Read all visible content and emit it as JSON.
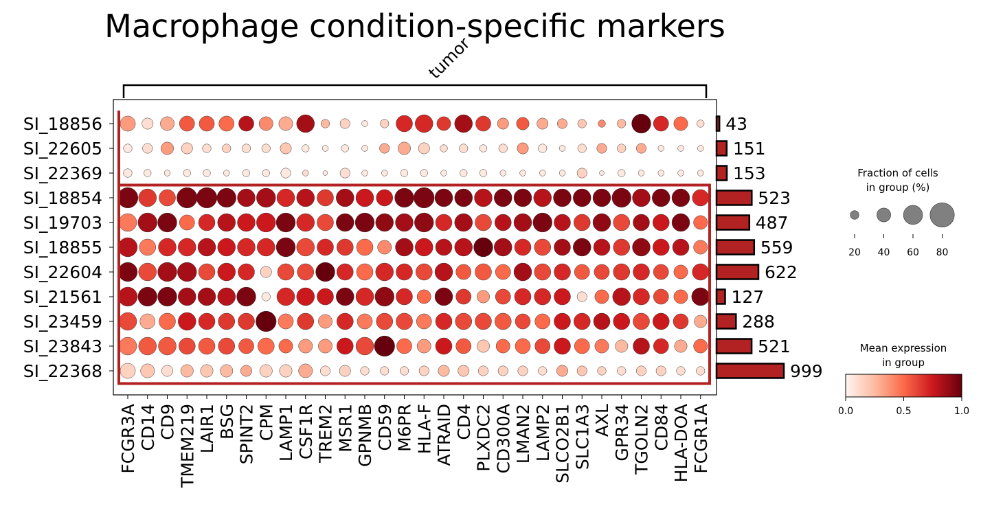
{
  "chart_data": {
    "type": "dotplot",
    "title": "Macrophage condition-specific markers",
    "group_label": "tumor",
    "genes": [
      "FCGR3A",
      "CD14",
      "CD9",
      "TMEM219",
      "LAIR1",
      "BSG",
      "SPINT2",
      "CPM",
      "LAMP1",
      "CSF1R",
      "TREM2",
      "MSR1",
      "GPNMB",
      "CD59",
      "M6PR",
      "HLA-F",
      "ATRAID",
      "CD4",
      "PLXDC2",
      "CD300A",
      "LMAN2",
      "LAMP2",
      "SLCO2B1",
      "SLC1A3",
      "AXL",
      "GPR34",
      "TGOLN2",
      "CD84",
      "HLA-DOA",
      "FCGR1A"
    ],
    "samples": [
      "SI_18856",
      "SI_22605",
      "SI_22369",
      "SI_18854",
      "SI_19703",
      "SI_18855",
      "SI_22604",
      "SI_21561",
      "SI_23459",
      "SI_23843",
      "SI_22368"
    ],
    "cell_counts": [
      43,
      151,
      153,
      523,
      487,
      559,
      622,
      127,
      288,
      521,
      999
    ],
    "mean_expression": [
      [
        0.35,
        0.1,
        0.3,
        0.55,
        0.55,
        0.5,
        0.8,
        0.4,
        0.3,
        0.85,
        0.25,
        0.15,
        0.05,
        0.15,
        0.7,
        0.7,
        0.65,
        0.85,
        0.65,
        0.35,
        0.55,
        0.3,
        0.3,
        0.2,
        0.4,
        0.25,
        1.0,
        0.7,
        0.5,
        0.1
      ],
      [
        0.05,
        0.1,
        0.35,
        0.15,
        0.1,
        0.15,
        0.1,
        0.1,
        0.2,
        0.05,
        0.05,
        0.05,
        0.05,
        0.3,
        0.3,
        0.15,
        0.1,
        0.1,
        0.05,
        0.1,
        0.35,
        0.05,
        0.05,
        0.1,
        0.3,
        0.15,
        0.3,
        0.05,
        0.05,
        0.05
      ],
      [
        0.05,
        0.05,
        0.05,
        0.05,
        0.05,
        0.05,
        0.05,
        0.05,
        0.05,
        0.1,
        0.05,
        0.1,
        0.05,
        0.05,
        0.05,
        0.05,
        0.05,
        0.05,
        0.05,
        0.05,
        0.05,
        0.05,
        0.05,
        0.15,
        0.05,
        0.05,
        0.05,
        0.05,
        0.05,
        0.05
      ],
      [
        0.95,
        0.65,
        0.6,
        0.95,
        0.95,
        0.95,
        0.85,
        0.85,
        0.7,
        0.8,
        0.65,
        0.85,
        0.75,
        0.75,
        0.95,
        0.95,
        0.95,
        0.95,
        0.8,
        0.95,
        0.95,
        0.8,
        0.95,
        0.95,
        0.95,
        0.95,
        0.85,
        0.95,
        0.95,
        0.7
      ],
      [
        0.45,
        0.85,
        0.95,
        0.5,
        0.7,
        0.8,
        0.75,
        0.75,
        0.95,
        0.7,
        0.6,
        0.95,
        0.95,
        0.9,
        0.85,
        0.9,
        0.7,
        0.85,
        0.6,
        0.8,
        0.85,
        0.95,
        0.8,
        0.65,
        0.9,
        0.6,
        0.85,
        0.75,
        0.95,
        0.5
      ],
      [
        0.8,
        0.45,
        0.7,
        0.7,
        0.8,
        0.75,
        0.7,
        0.7,
        0.95,
        0.6,
        0.7,
        0.65,
        0.5,
        0.4,
        0.85,
        0.75,
        0.8,
        0.8,
        1.0,
        0.85,
        0.7,
        0.6,
        0.85,
        0.95,
        0.8,
        0.65,
        0.9,
        0.75,
        0.8,
        0.45
      ],
      [
        0.95,
        0.6,
        0.85,
        0.85,
        0.6,
        0.75,
        0.7,
        0.15,
        0.6,
        0.6,
        1.0,
        0.7,
        0.5,
        0.7,
        0.7,
        0.6,
        0.8,
        0.55,
        0.55,
        0.5,
        0.85,
        0.6,
        0.7,
        0.55,
        0.6,
        0.65,
        0.7,
        0.6,
        0.5,
        0.7
      ],
      [
        0.8,
        0.95,
        0.95,
        0.85,
        0.85,
        0.8,
        0.95,
        0.05,
        0.7,
        0.75,
        0.75,
        0.95,
        0.7,
        0.9,
        0.7,
        0.5,
        0.95,
        0.65,
        0.35,
        0.6,
        0.7,
        0.7,
        0.75,
        0.1,
        0.5,
        0.8,
        0.7,
        0.6,
        0.5,
        0.95
      ],
      [
        0.6,
        0.3,
        0.5,
        0.75,
        0.7,
        0.65,
        0.65,
        1.0,
        0.45,
        0.65,
        0.35,
        0.7,
        0.45,
        0.6,
        0.6,
        0.45,
        0.7,
        0.6,
        0.6,
        0.55,
        0.6,
        0.5,
        0.75,
        0.7,
        0.8,
        0.75,
        0.6,
        0.75,
        0.65,
        0.3
      ],
      [
        0.45,
        0.55,
        0.55,
        0.6,
        0.55,
        0.6,
        0.55,
        0.5,
        0.5,
        0.35,
        0.35,
        0.75,
        0.6,
        1.0,
        0.5,
        0.35,
        0.75,
        0.55,
        0.2,
        0.5,
        0.5,
        0.6,
        0.75,
        0.5,
        0.45,
        0.25,
        0.8,
        0.7,
        0.3,
        0.5
      ],
      [
        0.15,
        0.2,
        0.1,
        0.25,
        0.2,
        0.25,
        0.3,
        0.15,
        0.15,
        0.3,
        0.1,
        0.15,
        0.1,
        0.1,
        0.1,
        0.15,
        0.25,
        0.2,
        0.15,
        0.15,
        0.15,
        0.1,
        0.3,
        0.2,
        0.15,
        0.1,
        0.15,
        0.15,
        0.1,
        0.1
      ]
    ],
    "fraction_of_cells": [
      [
        45,
        30,
        40,
        45,
        45,
        45,
        45,
        40,
        40,
        55,
        20,
        25,
        10,
        20,
        50,
        55,
        40,
        55,
        45,
        30,
        35,
        30,
        25,
        20,
        15,
        20,
        60,
        45,
        40,
        15
      ],
      [
        20,
        25,
        35,
        30,
        20,
        20,
        20,
        20,
        30,
        15,
        10,
        15,
        10,
        25,
        35,
        30,
        15,
        20,
        15,
        20,
        30,
        20,
        10,
        20,
        25,
        20,
        25,
        10,
        10,
        10
      ],
      [
        20,
        15,
        10,
        15,
        15,
        10,
        15,
        15,
        25,
        10,
        5,
        25,
        10,
        10,
        15,
        15,
        10,
        15,
        15,
        10,
        10,
        10,
        10,
        25,
        5,
        15,
        10,
        10,
        10,
        10
      ],
      [
        65,
        55,
        50,
        65,
        65,
        60,
        55,
        60,
        55,
        55,
        50,
        55,
        55,
        50,
        60,
        65,
        55,
        55,
        55,
        55,
        55,
        55,
        55,
        55,
        55,
        60,
        55,
        55,
        55,
        50
      ],
      [
        55,
        60,
        60,
        45,
        50,
        55,
        55,
        60,
        60,
        55,
        50,
        55,
        60,
        55,
        55,
        60,
        50,
        55,
        50,
        50,
        55,
        60,
        50,
        50,
        55,
        50,
        50,
        50,
        55,
        40
      ],
      [
        60,
        50,
        55,
        55,
        55,
        55,
        55,
        55,
        60,
        55,
        50,
        50,
        50,
        40,
        55,
        55,
        50,
        55,
        60,
        55,
        50,
        50,
        50,
        55,
        50,
        50,
        55,
        50,
        50,
        40
      ],
      [
        60,
        55,
        60,
        60,
        50,
        55,
        50,
        30,
        50,
        50,
        60,
        50,
        50,
        55,
        50,
        50,
        55,
        45,
        50,
        45,
        55,
        50,
        50,
        45,
        45,
        50,
        50,
        45,
        40,
        50
      ],
      [
        60,
        60,
        60,
        55,
        55,
        55,
        60,
        20,
        55,
        55,
        50,
        55,
        55,
        60,
        50,
        40,
        55,
        45,
        35,
        45,
        50,
        50,
        50,
        25,
        40,
        55,
        50,
        45,
        40,
        55
      ],
      [
        55,
        45,
        50,
        55,
        50,
        50,
        50,
        65,
        45,
        50,
        40,
        50,
        45,
        50,
        50,
        45,
        50,
        50,
        50,
        50,
        45,
        45,
        50,
        50,
        50,
        50,
        50,
        50,
        45,
        35
      ],
      [
        55,
        55,
        55,
        50,
        50,
        50,
        45,
        50,
        40,
        40,
        40,
        50,
        55,
        65,
        45,
        40,
        50,
        45,
        35,
        40,
        45,
        45,
        50,
        45,
        40,
        35,
        50,
        45,
        35,
        40
      ],
      [
        45,
        40,
        30,
        35,
        35,
        35,
        30,
        35,
        35,
        40,
        25,
        30,
        20,
        20,
        20,
        25,
        30,
        30,
        25,
        25,
        25,
        20,
        30,
        25,
        20,
        20,
        25,
        25,
        20,
        20
      ]
    ],
    "highlight_rows": [
      3,
      10
    ],
    "colorbar": {
      "title_line1": "Mean expression",
      "title_line2": "in group",
      "ticks": [
        "0.0",
        "0.5",
        "1.0"
      ],
      "range": [
        0,
        1
      ],
      "colormap": "Reds"
    },
    "size_legend": {
      "title_line1": "Fraction of cells",
      "title_line2": "in group (%)",
      "values": [
        20,
        40,
        60,
        80
      ]
    },
    "colors": {
      "bar_fill": "#b22222",
      "highlight": "#b22222",
      "edge": "#000000",
      "legend_dot": "#808080"
    }
  }
}
